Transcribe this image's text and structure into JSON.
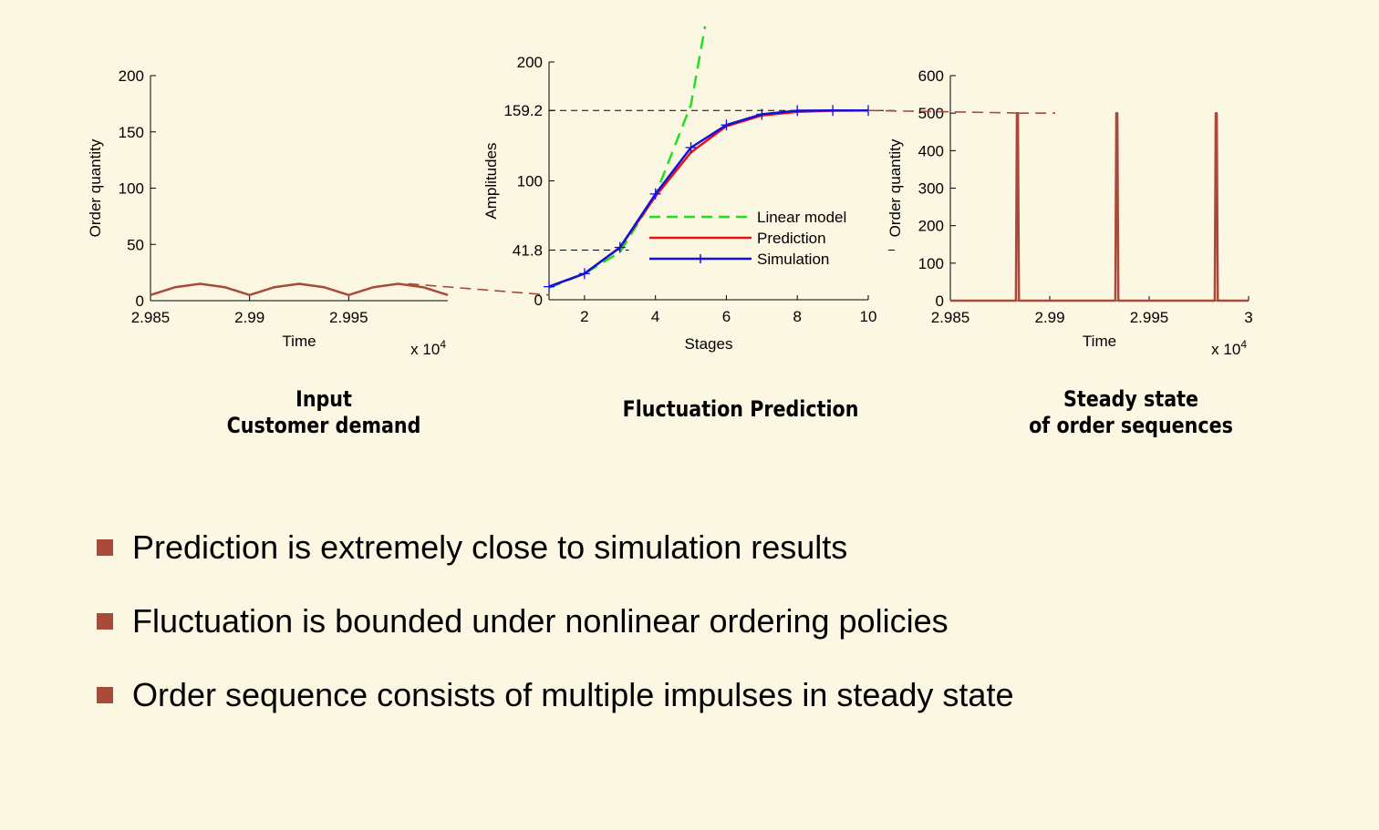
{
  "colors": {
    "background": "#fcf7e3",
    "accent": "#a84a3a",
    "linear_model": "#22dd22",
    "prediction": "#ee1111",
    "simulation": "#1111dd"
  },
  "captions": {
    "left": [
      "Input",
      "Customer demand"
    ],
    "middle": [
      "Fluctuation Prediction"
    ],
    "right": [
      "Steady state",
      "of order sequences"
    ]
  },
  "bullets": [
    "Prediction is extremely close to simulation results",
    "Fluctuation is bounded under nonlinear ordering policies",
    "Order sequence consists of multiple impulses in steady state"
  ],
  "chart_data": [
    {
      "id": "customer-demand",
      "type": "line",
      "xlabel": "Time",
      "ylabel": "Order quantity",
      "x_multiplier": "x 10^4",
      "xlim": [
        2.985,
        3.0
      ],
      "ylim": [
        0,
        200
      ],
      "x_ticks": [
        2.985,
        2.99,
        2.995
      ],
      "x_tick_labels": [
        "2.985",
        "2.99",
        "2.995"
      ],
      "y_ticks": [
        0,
        50,
        100,
        150,
        200
      ],
      "y_tick_labels": [
        "0",
        "50",
        "100",
        "150",
        "200"
      ],
      "series": [
        {
          "color": "#a84a3a",
          "x": [
            2.985,
            2.98625,
            2.9875,
            2.98875,
            2.99,
            2.99125,
            2.9925,
            2.99375,
            2.995,
            2.99625,
            2.9975,
            2.99875,
            3.0
          ],
          "y": [
            5,
            12,
            15,
            12,
            5,
            12,
            15,
            12,
            5,
            12,
            15,
            12,
            5
          ]
        }
      ]
    },
    {
      "id": "fluctuation-prediction",
      "type": "line",
      "xlabel": "Stages",
      "ylabel": "Amplitudes",
      "xlim": [
        1,
        10
      ],
      "ylim": [
        0,
        200
      ],
      "x_ticks": [
        2,
        4,
        6,
        8,
        10
      ],
      "x_tick_labels": [
        "2",
        "4",
        "6",
        "8",
        "10"
      ],
      "y_ticks": [
        0,
        41.8,
        100,
        159.2,
        200
      ],
      "y_tick_labels": [
        "0",
        "41.8",
        "100",
        "159.2",
        "200"
      ],
      "reference_lines": [
        41.8,
        159.2
      ],
      "legend_position": "lower-right",
      "series": [
        {
          "name": "Linear model",
          "color": "#22dd22",
          "style": "dashed",
          "x": [
            1,
            2,
            3,
            4,
            5,
            5.4
          ],
          "y": [
            10,
            22,
            40,
            88,
            164,
            230
          ]
        },
        {
          "name": "Prediction",
          "color": "#ee1111",
          "style": "solid",
          "x": [
            1,
            2,
            3,
            4,
            5,
            6,
            7,
            8,
            9,
            10
          ],
          "y": [
            11,
            22,
            44,
            87,
            124,
            146,
            155,
            158,
            159,
            159.2
          ]
        },
        {
          "name": "Simulation",
          "color": "#1111dd",
          "style": "solid",
          "marker": "+",
          "x": [
            1,
            2,
            3,
            4,
            5,
            6,
            7,
            8,
            9,
            10
          ],
          "y": [
            11,
            22,
            44,
            89,
            128,
            147,
            156,
            159,
            159.2,
            159.2
          ]
        }
      ]
    },
    {
      "id": "steady-state-orders",
      "type": "line",
      "xlabel": "Time",
      "ylabel": "Order quantity",
      "x_multiplier": "x 10^4",
      "xlim": [
        2.985,
        3.0
      ],
      "ylim": [
        0,
        600
      ],
      "x_ticks": [
        2.985,
        2.99,
        2.995,
        3.0
      ],
      "x_tick_labels": [
        "2.985",
        "2.99",
        "2.995",
        "3"
      ],
      "y_ticks": [
        0,
        100,
        200,
        300,
        400,
        500,
        600
      ],
      "y_tick_labels": [
        "0",
        "100",
        "200",
        "300",
        "400",
        "500",
        "600"
      ],
      "series": [
        {
          "color": "#a84a3a",
          "x": [
            2.985,
            2.9883,
            2.98835,
            2.9884,
            2.98845,
            2.9933,
            2.99335,
            2.9934,
            2.99345,
            2.9983,
            2.99835,
            2.9984,
            2.99845,
            3.0
          ],
          "y": [
            0,
            0,
            500,
            500,
            0,
            0,
            500,
            500,
            0,
            0,
            500,
            500,
            0,
            0
          ]
        }
      ]
    }
  ]
}
